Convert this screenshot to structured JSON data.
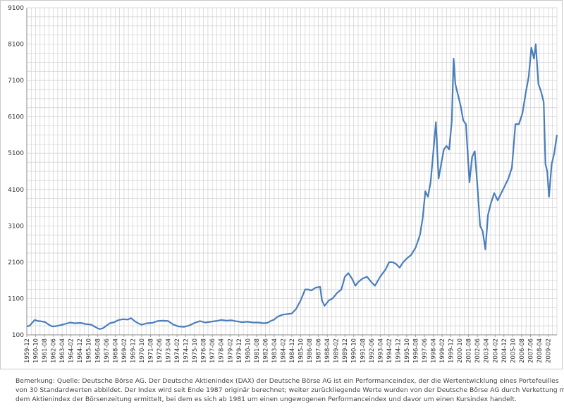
{
  "chart_data": {
    "type": "line",
    "title": "",
    "xlabel": "",
    "ylabel": "",
    "ylim": [
      100,
      9100
    ],
    "y_ticks": [
      "100",
      "1100",
      "2100",
      "3100",
      "4100",
      "5100",
      "6100",
      "7100",
      "8100",
      "9100"
    ],
    "grid": true,
    "legend": "none",
    "line_color": "#4a7ebb",
    "x_tick_labels": [
      "1959-12",
      "1960-10",
      "1961-08",
      "1962-06",
      "1963-04",
      "1964-02",
      "1964-12",
      "1965-10",
      "1966-08",
      "1967-06",
      "1968-04",
      "1969-02",
      "1969-12",
      "1970-10",
      "1971-08",
      "1972-06",
      "1973-04",
      "1974-02",
      "1974-12",
      "1975-10",
      "1976-08",
      "1977-06",
      "1978-04",
      "1979-02",
      "1979-12",
      "1980-10",
      "1981-08",
      "1982-06",
      "1983-04",
      "1984-02",
      "1984-12",
      "1985-10",
      "1986-08",
      "1987-06",
      "1988-04",
      "1989-02",
      "1989-12",
      "1990-10",
      "1991-08",
      "1992-06",
      "1993-04",
      "1994-02",
      "1994-12",
      "1995-10",
      "1996-08",
      "1997-06",
      "1998-04",
      "1999-02",
      "1999-12",
      "2000-10",
      "2001-08",
      "2002-06",
      "2003-04",
      "2004-02",
      "2004-12",
      "2005-10",
      "2006-08",
      "2007-06",
      "2008-04",
      "2009-02"
    ],
    "series": [
      {
        "x": [
          "1959-12",
          "1960-03",
          "1960-06",
          "1960-09",
          "1961-01",
          "1961-05",
          "1961-09",
          "1962-01",
          "1962-05",
          "1962-09",
          "1963-01",
          "1963-06",
          "1964-01",
          "1964-06",
          "1965-01",
          "1965-06",
          "1966-01",
          "1966-06",
          "1966-10",
          "1967-02",
          "1967-06",
          "1967-10",
          "1968-03",
          "1968-08",
          "1969-01",
          "1969-06",
          "1969-10",
          "1970-02",
          "1970-06",
          "1970-10",
          "1971-04",
          "1971-10",
          "1972-04",
          "1972-10",
          "1973-04",
          "1973-10",
          "1974-04",
          "1974-10",
          "1975-04",
          "1975-10",
          "1976-04",
          "1976-10",
          "1977-04",
          "1977-10",
          "1978-04",
          "1978-10",
          "1979-04",
          "1979-10",
          "1980-04",
          "1980-10",
          "1981-04",
          "1981-10",
          "1982-04",
          "1982-08",
          "1982-12",
          "1983-04",
          "1983-08",
          "1984-01",
          "1984-06",
          "1984-12",
          "1985-05",
          "1985-10",
          "1986-03",
          "1986-06",
          "1986-10",
          "1987-03",
          "1987-08",
          "1987-10",
          "1988-01",
          "1988-06",
          "1988-10",
          "1989-03",
          "1989-08",
          "1989-12",
          "1990-04",
          "1990-08",
          "1990-12",
          "1991-03",
          "1991-08",
          "1992-01",
          "1992-06",
          "1992-10",
          "1993-04",
          "1993-10",
          "1994-02",
          "1994-06",
          "1994-10",
          "1995-02",
          "1995-06",
          "1995-10",
          "1996-03",
          "1996-08",
          "1997-01",
          "1997-04",
          "1997-07",
          "1997-10",
          "1998-01",
          "1998-04",
          "1998-07",
          "1998-10",
          "1999-01",
          "1999-04",
          "1999-07",
          "1999-10",
          "2000-01",
          "2000-03",
          "2000-05",
          "2000-07",
          "2000-09",
          "2000-11",
          "2001-02",
          "2001-05",
          "2001-09",
          "2001-12",
          "2002-03",
          "2002-06",
          "2002-09",
          "2002-12",
          "2003-03",
          "2003-06",
          "2003-09",
          "2004-01",
          "2004-05",
          "2004-09",
          "2005-01",
          "2005-05",
          "2005-09",
          "2006-01",
          "2006-05",
          "2006-09",
          "2007-01",
          "2007-04",
          "2007-07",
          "2007-10",
          "2007-12",
          "2008-03",
          "2008-06",
          "2008-09",
          "2008-11",
          "2009-01",
          "2009-03",
          "2009-06",
          "2009-09",
          "2009-12"
        ],
        "y": [
          330,
          350,
          430,
          510,
          480,
          470,
          450,
          380,
          330,
          340,
          360,
          390,
          440,
          420,
          430,
          400,
          380,
          310,
          260,
          280,
          350,
          420,
          450,
          510,
          530,
          520,
          560,
          480,
          420,
          380,
          420,
          430,
          480,
          490,
          480,
          380,
          330,
          320,
          360,
          430,
          480,
          440,
          460,
          480,
          510,
          490,
          500,
          470,
          450,
          460,
          440,
          440,
          420,
          430,
          480,
          520,
          600,
          650,
          670,
          690,
          820,
          1050,
          1350,
          1350,
          1320,
          1400,
          1420,
          1050,
          900,
          1050,
          1100,
          1250,
          1350,
          1700,
          1800,
          1650,
          1450,
          1550,
          1650,
          1700,
          1550,
          1450,
          1700,
          1900,
          2100,
          2100,
          2050,
          1950,
          2100,
          2200,
          2300,
          2500,
          2850,
          3300,
          4050,
          3900,
          4300,
          5100,
          5950,
          4400,
          4800,
          5200,
          5300,
          5200,
          6000,
          7700,
          7000,
          6800,
          6600,
          6400,
          6000,
          5900,
          4300,
          5000,
          5150,
          4200,
          3100,
          2950,
          2450,
          3400,
          3700,
          4000,
          3800,
          4000,
          4200,
          4400,
          4700,
          5900,
          5900,
          6200,
          6800,
          7200,
          8000,
          7700,
          8100,
          7000,
          6800,
          6500,
          4800,
          4600,
          3900,
          4800,
          5100,
          5600
        ]
      }
    ]
  },
  "note": {
    "line1": "Bemerkung: Quelle: Deutsche Börse AG. Der Deutsche Aktienindex (DAX) der Deutsche Börse AG ist ein Performanceindex, der die Wertentwicklung eines Portefeuilles",
    "line2": "von 30 Standardwerten abbildet. Der Index wird seit Ende 1987 originär berechnet; weiter zurückliegende Werte wurden von der Deutsche Börse AG durch Verkettung mit",
    "line3": "dem Aktienindex der Börsenzeitung ermittelt, bei dem es sich ab 1981 um einen ungewogenen Performanceindex und davor um einen Kursindex handelt."
  }
}
